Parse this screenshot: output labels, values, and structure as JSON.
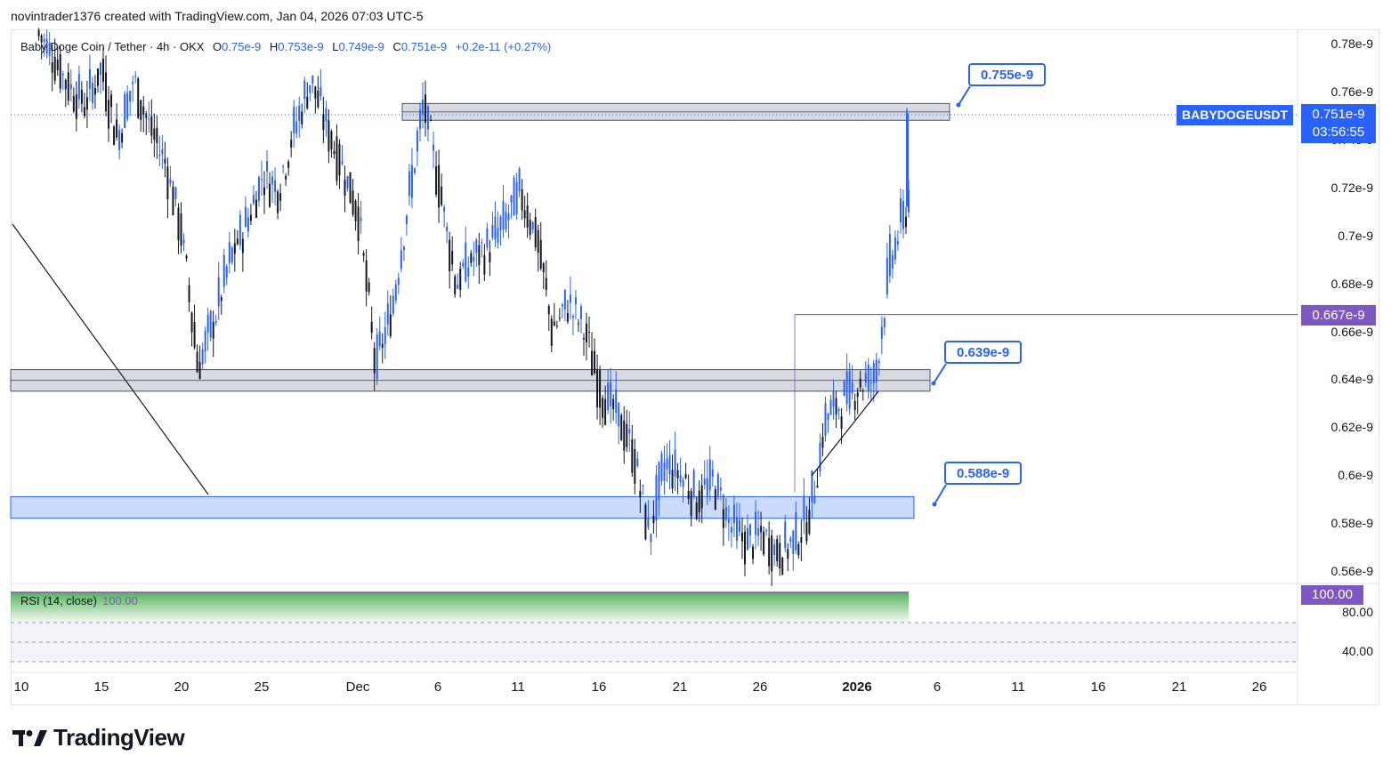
{
  "credit": "novintrader1376 created with TradingView.com, Jan 04, 2026 07:03 UTC-5",
  "legend": {
    "symbol": "Baby Doge Coin / Tether · 4h · OKX",
    "o_label": "O",
    "o": "0.75e-9",
    "h_label": "H",
    "h": "0.753e-9",
    "l_label": "L",
    "l": "0.749e-9",
    "c_label": "C",
    "c": "0.751e-9",
    "change": "+0.2e-11 (+0.27%)"
  },
  "price_axis": [
    "0.78e-9",
    "0.76e-9",
    "0.74e-9",
    "0.72e-9",
    "0.7e-9",
    "0.68e-9",
    "0.66e-9",
    "0.64e-9",
    "0.62e-9",
    "0.6e-9",
    "0.58e-9",
    "0.56e-9"
  ],
  "rsi_axis": [
    "80.00",
    "40.00"
  ],
  "date_axis": [
    "10",
    "15",
    "20",
    "25",
    "Dec",
    "6",
    "11",
    "16",
    "21",
    "26",
    "2026",
    "6",
    "11",
    "16",
    "21",
    "26"
  ],
  "callouts": {
    "top": "0.755e-9",
    "mid": "0.639e-9",
    "low": "0.588e-9"
  },
  "tags": {
    "symbol": "BABYDOGEUSDT",
    "last_price": "0.751e-9",
    "countdown": "03:56:55",
    "level": "0.667e-9",
    "rsi": "100.00"
  },
  "rsi_legend": {
    "name": "RSI (14, close)",
    "value": "100.00"
  },
  "brand": "TradingView",
  "colors": {
    "up": "#2962ff",
    "down": "#131722",
    "zone_gray": "#d1d4dc",
    "zone_blue": "#c8d9fb",
    "accent": "#2962ff",
    "purple": "#7e57c2"
  },
  "chart_data": {
    "type": "candlestick",
    "symbol": "Baby Doge Coin / Tether",
    "interval": "4h",
    "exchange": "OKX",
    "y_unit": "USDT (e-9)",
    "ylim": [
      0.55,
      0.79
    ],
    "last_close": 0.751,
    "zones": [
      {
        "label": "0.755e-9",
        "from": 0.748,
        "to": 0.755,
        "color": "gray"
      },
      {
        "label": "0.639e-9",
        "from": 0.635,
        "to": 0.644,
        "color": "gray"
      },
      {
        "label": "0.588e-9",
        "from": 0.582,
        "to": 0.591,
        "color": "blue"
      }
    ],
    "horizontal_levels": [
      0.667
    ],
    "price_path": [
      {
        "date": "2025-11-11",
        "price": 0.785
      },
      {
        "date": "2025-11-12",
        "price": 0.775
      },
      {
        "date": "2025-11-13",
        "price": 0.762
      },
      {
        "date": "2025-11-14",
        "price": 0.755
      },
      {
        "date": "2025-11-15",
        "price": 0.77
      },
      {
        "date": "2025-11-16",
        "price": 0.74
      },
      {
        "date": "2025-11-17",
        "price": 0.765
      },
      {
        "date": "2025-11-18",
        "price": 0.745
      },
      {
        "date": "2025-11-19",
        "price": 0.73
      },
      {
        "date": "2025-11-20",
        "price": 0.7
      },
      {
        "date": "2025-11-21",
        "price": 0.645
      },
      {
        "date": "2025-11-22",
        "price": 0.665
      },
      {
        "date": "2025-11-23",
        "price": 0.69
      },
      {
        "date": "2025-11-24",
        "price": 0.705
      },
      {
        "date": "2025-11-25",
        "price": 0.725
      },
      {
        "date": "2025-11-26",
        "price": 0.72
      },
      {
        "date": "2025-11-27",
        "price": 0.745
      },
      {
        "date": "2025-11-28",
        "price": 0.765
      },
      {
        "date": "2025-11-29",
        "price": 0.745
      },
      {
        "date": "2025-11-30",
        "price": 0.728
      },
      {
        "date": "2025-12-01",
        "price": 0.708
      },
      {
        "date": "2025-12-02",
        "price": 0.645
      },
      {
        "date": "2025-12-03",
        "price": 0.668
      },
      {
        "date": "2025-12-04",
        "price": 0.712
      },
      {
        "date": "2025-12-05",
        "price": 0.755
      },
      {
        "date": "2025-12-06",
        "price": 0.72
      },
      {
        "date": "2025-12-07",
        "price": 0.68
      },
      {
        "date": "2025-12-08",
        "price": 0.69
      },
      {
        "date": "2025-12-09",
        "price": 0.695
      },
      {
        "date": "2025-12-10",
        "price": 0.705
      },
      {
        "date": "2025-12-11",
        "price": 0.718
      },
      {
        "date": "2025-12-12",
        "price": 0.7
      },
      {
        "date": "2025-12-13",
        "price": 0.66
      },
      {
        "date": "2025-12-14",
        "price": 0.672
      },
      {
        "date": "2025-12-15",
        "price": 0.66
      },
      {
        "date": "2025-12-16",
        "price": 0.635
      },
      {
        "date": "2025-12-17",
        "price": 0.625
      },
      {
        "date": "2025-12-18",
        "price": 0.61
      },
      {
        "date": "2025-12-19",
        "price": 0.575
      },
      {
        "date": "2025-12-20",
        "price": 0.605
      },
      {
        "date": "2025-12-21",
        "price": 0.6
      },
      {
        "date": "2025-12-22",
        "price": 0.59
      },
      {
        "date": "2025-12-23",
        "price": 0.598
      },
      {
        "date": "2025-12-24",
        "price": 0.58
      },
      {
        "date": "2025-12-25",
        "price": 0.572
      },
      {
        "date": "2025-12-26",
        "price": 0.575
      },
      {
        "date": "2025-12-27",
        "price": 0.568
      },
      {
        "date": "2025-12-28",
        "price": 0.572
      },
      {
        "date": "2025-12-29",
        "price": 0.585
      },
      {
        "date": "2025-12-30",
        "price": 0.625
      },
      {
        "date": "2025-12-31",
        "price": 0.63
      },
      {
        "date": "2026-01-01",
        "price": 0.638
      },
      {
        "date": "2026-01-02",
        "price": 0.64
      },
      {
        "date": "2026-01-03",
        "price": 0.69
      },
      {
        "date": "2026-01-04",
        "price": 0.712
      },
      {
        "date": "2026-01-05",
        "price": 0.751
      }
    ],
    "rsi": {
      "period": 14,
      "source": "close",
      "value": 100.0,
      "ticks": [
        80,
        40
      ]
    },
    "x_ticks": [
      "10",
      "15",
      "20",
      "25",
      "Dec",
      "6",
      "11",
      "16",
      "21",
      "26",
      "2026",
      "6",
      "11",
      "16",
      "21",
      "26"
    ]
  }
}
